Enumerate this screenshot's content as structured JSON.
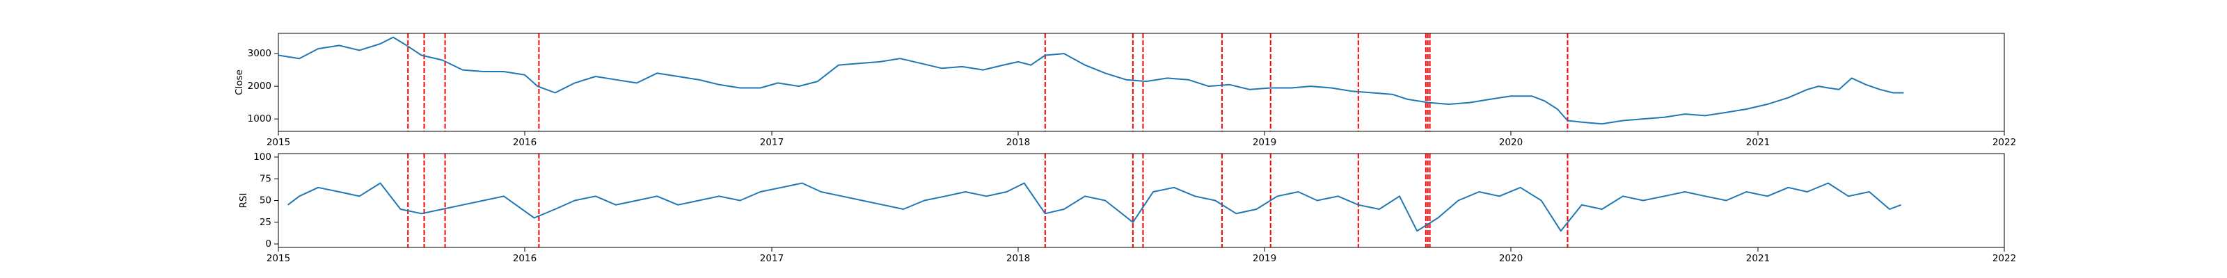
{
  "chart_data": [
    {
      "type": "line",
      "title": "",
      "xlabel": "",
      "ylabel": "Close",
      "xlim": [
        "2015-01-01",
        "2022-01-01"
      ],
      "ylim": [
        620,
        3620
      ],
      "x_ticks": [
        "2015",
        "2016",
        "2017",
        "2018",
        "2019",
        "2020",
        "2021",
        "2022"
      ],
      "y_ticks": [
        1000,
        2000,
        3000
      ],
      "series_color": "#1f77b4",
      "marker_color": "#ff0000",
      "grid": false,
      "legend": "none",
      "series": [
        {
          "x": [
            "2015-01-01",
            "2015-02-01",
            "2015-03-01",
            "2015-04-01",
            "2015-05-01",
            "2015-06-01",
            "2015-06-20",
            "2015-07-10",
            "2015-08-01",
            "2015-09-01",
            "2015-10-01",
            "2015-11-01",
            "2015-12-01",
            "2016-01-01",
            "2016-01-20",
            "2016-02-15",
            "2016-03-15",
            "2016-04-15",
            "2016-05-15",
            "2016-06-15",
            "2016-07-15",
            "2016-08-15",
            "2016-09-15",
            "2016-10-15",
            "2016-11-15",
            "2016-12-15",
            "2017-01-10",
            "2017-02-10",
            "2017-03-10",
            "2017-04-10",
            "2017-05-10",
            "2017-06-10",
            "2017-07-10",
            "2017-08-10",
            "2017-09-10",
            "2017-10-10",
            "2017-11-10",
            "2017-12-10",
            "2018-01-01",
            "2018-01-20",
            "2018-02-10",
            "2018-03-10",
            "2018-04-10",
            "2018-05-10",
            "2018-06-10",
            "2018-07-10",
            "2018-08-10",
            "2018-09-10",
            "2018-10-10",
            "2018-11-10",
            "2018-12-10",
            "2019-01-10",
            "2019-02-10",
            "2019-03-10",
            "2019-04-10",
            "2019-05-10",
            "2019-06-10",
            "2019-07-10",
            "2019-08-01",
            "2019-09-01",
            "2019-10-01",
            "2019-11-01",
            "2019-12-01",
            "2020-01-01",
            "2020-02-01",
            "2020-02-20",
            "2020-03-10",
            "2020-03-25",
            "2020-04-15",
            "2020-05-15",
            "2020-06-15",
            "2020-07-15",
            "2020-08-15",
            "2020-09-15",
            "2020-10-15",
            "2020-11-15",
            "2020-12-15",
            "2021-01-15",
            "2021-02-15",
            "2021-03-15",
            "2021-04-01",
            "2021-04-15",
            "2021-05-01",
            "2021-05-20",
            "2021-06-10",
            "2021-07-01",
            "2021-07-20",
            "2021-08-05"
          ],
          "y": [
            2950,
            2850,
            3150,
            3250,
            3100,
            3300,
            3500,
            3250,
            2950,
            2800,
            2500,
            2450,
            2450,
            2350,
            2000,
            1800,
            2100,
            2300,
            2200,
            2100,
            2400,
            2300,
            2200,
            2050,
            1950,
            1950,
            2100,
            2000,
            2150,
            2650,
            2700,
            2750,
            2850,
            2700,
            2550,
            2600,
            2500,
            2650,
            2750,
            2650,
            2950,
            3000,
            2650,
            2400,
            2200,
            2150,
            2250,
            2200,
            2000,
            2050,
            1900,
            1950,
            1950,
            2000,
            1950,
            1850,
            1800,
            1750,
            1600,
            1500,
            1450,
            1500,
            1600,
            1700,
            1700,
            1550,
            1300,
            950,
            900,
            850,
            950,
            1000,
            1050,
            1150,
            1100,
            1200,
            1300,
            1450,
            1650,
            1900,
            2000,
            1950,
            1900,
            2250,
            2050,
            1900,
            1800,
            1800
          ]
        }
      ],
      "vlines": [
        "2015-07-12",
        "2015-08-05",
        "2015-09-05",
        "2016-01-22",
        "2018-02-10",
        "2018-06-20",
        "2018-07-05",
        "2018-10-30",
        "2019-01-10",
        "2019-05-20",
        "2019-08-28",
        "2019-08-31",
        "2019-09-03",
        "2020-03-25"
      ]
    },
    {
      "type": "line",
      "title": "",
      "xlabel": "",
      "ylabel": "RSI",
      "xlim": [
        "2015-01-01",
        "2022-01-01"
      ],
      "ylim": [
        -4,
        104
      ],
      "x_ticks": [
        "2015",
        "2016",
        "2017",
        "2018",
        "2019",
        "2020",
        "2021",
        "2022"
      ],
      "y_ticks": [
        0,
        25,
        50,
        75,
        100
      ],
      "series_color": "#1f77b4",
      "marker_color": "#ff0000",
      "grid": false,
      "legend": "none",
      "series": [
        {
          "x": [
            "2015-01-15",
            "2015-02-01",
            "2015-03-01",
            "2015-04-01",
            "2015-05-01",
            "2015-06-01",
            "2015-07-01",
            "2015-08-01",
            "2015-09-01",
            "2015-10-01",
            "2015-11-01",
            "2015-12-01",
            "2016-01-15",
            "2016-02-15",
            "2016-03-15",
            "2016-04-15",
            "2016-05-15",
            "2016-06-15",
            "2016-07-15",
            "2016-08-15",
            "2016-09-15",
            "2016-10-15",
            "2016-11-15",
            "2016-12-15",
            "2017-01-15",
            "2017-02-15",
            "2017-03-15",
            "2017-04-15",
            "2017-05-15",
            "2017-06-15",
            "2017-07-15",
            "2017-08-15",
            "2017-09-15",
            "2017-10-15",
            "2017-11-15",
            "2017-12-15",
            "2018-01-10",
            "2018-02-10",
            "2018-03-10",
            "2018-04-10",
            "2018-05-10",
            "2018-06-20",
            "2018-07-20",
            "2018-08-20",
            "2018-09-20",
            "2018-10-20",
            "2018-11-20",
            "2018-12-20",
            "2019-01-20",
            "2019-02-20",
            "2019-03-20",
            "2019-04-20",
            "2019-05-20",
            "2019-06-20",
            "2019-07-20",
            "2019-08-15",
            "2019-09-15",
            "2019-10-15",
            "2019-11-15",
            "2019-12-15",
            "2020-01-15",
            "2020-02-15",
            "2020-03-15",
            "2020-04-15",
            "2020-05-15",
            "2020-06-15",
            "2020-07-15",
            "2020-08-15",
            "2020-09-15",
            "2020-10-15",
            "2020-11-15",
            "2020-12-15",
            "2021-01-15",
            "2021-02-15",
            "2021-03-15",
            "2021-04-15",
            "2021-05-15",
            "2021-06-15",
            "2021-07-15",
            "2021-08-01"
          ],
          "y": [
            45,
            55,
            65,
            60,
            55,
            70,
            40,
            35,
            40,
            45,
            50,
            55,
            30,
            40,
            50,
            55,
            45,
            50,
            55,
            45,
            50,
            55,
            50,
            60,
            65,
            70,
            60,
            55,
            50,
            45,
            40,
            50,
            55,
            60,
            55,
            60,
            70,
            35,
            40,
            55,
            50,
            25,
            60,
            65,
            55,
            50,
            35,
            40,
            55,
            60,
            50,
            55,
            45,
            40,
            55,
            15,
            30,
            50,
            60,
            55,
            65,
            50,
            15,
            45,
            40,
            55,
            50,
            55,
            60,
            55,
            50,
            60,
            55,
            65,
            60,
            70,
            55,
            60,
            40,
            45
          ]
        }
      ],
      "vlines": [
        "2015-07-12",
        "2015-08-05",
        "2015-09-05",
        "2016-01-22",
        "2018-02-10",
        "2018-06-20",
        "2018-07-05",
        "2018-10-30",
        "2019-01-10",
        "2019-05-20",
        "2019-08-28",
        "2019-08-31",
        "2019-09-03",
        "2020-03-25"
      ]
    }
  ]
}
